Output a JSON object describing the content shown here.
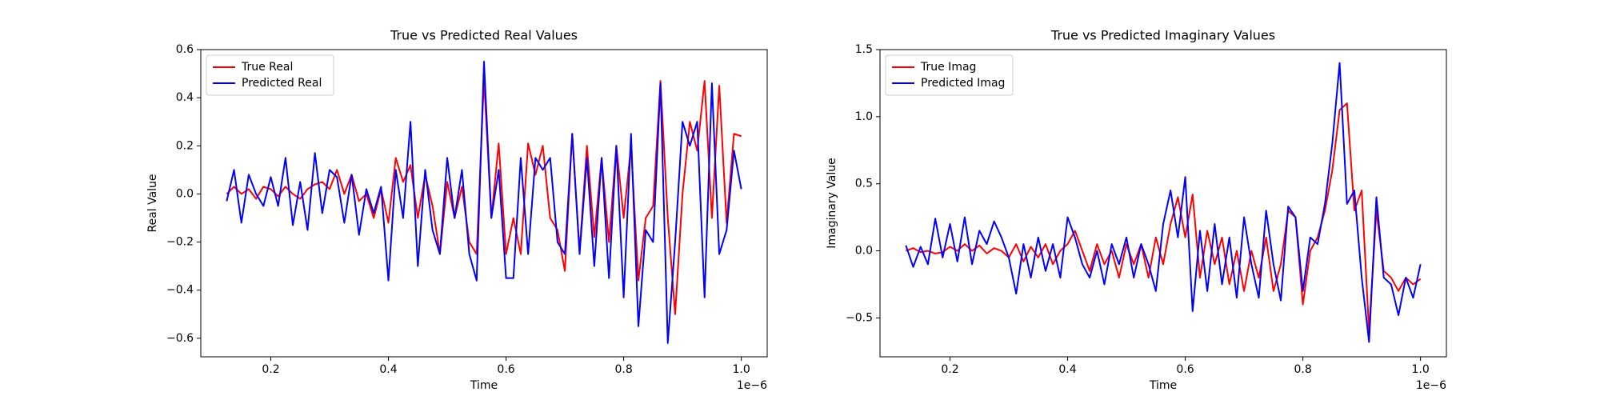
{
  "chart_data": [
    {
      "type": "line",
      "title": "True vs Predicted Real Values",
      "x_label": "Time",
      "y_label": "Real Value",
      "x_offset_label": "1e−6",
      "legend": "upper left",
      "x": [
        0.125,
        0.1375,
        0.15,
        0.1625,
        0.175,
        0.1875,
        0.2,
        0.2125,
        0.225,
        0.2375,
        0.25,
        0.2625,
        0.275,
        0.2875,
        0.3,
        0.3125,
        0.325,
        0.3375,
        0.35,
        0.3625,
        0.375,
        0.3875,
        0.4,
        0.4125,
        0.425,
        0.4375,
        0.45,
        0.4625,
        0.475,
        0.4875,
        0.5,
        0.5125,
        0.525,
        0.5375,
        0.55,
        0.5625,
        0.575,
        0.5875,
        0.6,
        0.6125,
        0.625,
        0.6375,
        0.65,
        0.6625,
        0.675,
        0.6875,
        0.7,
        0.7125,
        0.725,
        0.7375,
        0.75,
        0.7625,
        0.775,
        0.7875,
        0.8,
        0.8125,
        0.825,
        0.8375,
        0.85,
        0.8625,
        0.875,
        0.8875,
        0.9,
        0.9125,
        0.925,
        0.9375,
        0.95,
        0.9625,
        0.975,
        0.9875,
        1.0
      ],
      "series": [
        {
          "name": "True Real",
          "color": "#ff0000",
          "values": [
            0.0,
            0.03,
            0.0,
            0.02,
            -0.02,
            0.03,
            0.02,
            -0.01,
            0.03,
            0.0,
            -0.02,
            0.02,
            0.04,
            0.05,
            0.02,
            0.1,
            0.0,
            0.08,
            -0.03,
            0.0,
            -0.1,
            0.02,
            -0.12,
            0.15,
            0.05,
            0.12,
            -0.1,
            0.08,
            -0.05,
            -0.25,
            0.05,
            -0.1,
            0.03,
            -0.2,
            -0.25,
            0.48,
            -0.1,
            0.21,
            -0.25,
            -0.1,
            -0.25,
            0.21,
            0.08,
            0.2,
            -0.1,
            -0.15,
            -0.32,
            0.25,
            -0.24,
            0.2,
            -0.18,
            0.15,
            -0.2,
            0.2,
            -0.1,
            0.2,
            -0.36,
            -0.1,
            -0.05,
            0.47,
            -0.1,
            -0.5,
            0.0,
            0.3,
            0.18,
            0.47,
            -0.1,
            0.45,
            -0.12,
            0.25,
            0.24
          ]
        },
        {
          "name": "Predicted Real",
          "color": "#0000ff",
          "values": [
            -0.03,
            0.1,
            -0.12,
            0.08,
            0.0,
            -0.05,
            0.07,
            -0.05,
            0.15,
            -0.13,
            0.05,
            -0.15,
            0.17,
            -0.08,
            0.1,
            0.07,
            -0.12,
            0.08,
            -0.17,
            0.02,
            -0.08,
            0.03,
            -0.36,
            0.1,
            -0.1,
            0.3,
            -0.3,
            0.1,
            -0.15,
            -0.25,
            0.15,
            -0.1,
            0.1,
            -0.25,
            -0.36,
            0.55,
            -0.1,
            0.1,
            -0.35,
            -0.35,
            0.15,
            -0.25,
            0.15,
            0.1,
            0.15,
            -0.2,
            -0.25,
            0.25,
            -0.25,
            0.15,
            -0.3,
            0.15,
            -0.35,
            0.2,
            -0.43,
            0.25,
            -0.55,
            -0.15,
            -0.2,
            0.46,
            -0.62,
            -0.2,
            0.3,
            0.2,
            0.3,
            -0.43,
            0.46,
            -0.25,
            -0.15,
            0.18,
            0.02
          ]
        }
      ],
      "xlim": [
        0.081,
        1.044
      ],
      "ylim": [
        -0.677,
        0.6
      ],
      "xticks": [
        0.2,
        0.4,
        0.6,
        0.8,
        {
          "value": 1.0,
          "label": "1.0"
        }
      ],
      "yticks": [
        {
          "value": -0.6,
          "label": "−0.6"
        },
        {
          "value": -0.4,
          "label": "−0.4"
        },
        {
          "value": -0.2,
          "label": "−0.2"
        },
        {
          "value": 0,
          "label": "0.0"
        },
        0.2,
        0.4,
        0.6
      ]
    },
    {
      "type": "line",
      "title": "True vs Predicted Imaginary Values",
      "x_label": "Time",
      "y_label": "Imaginary Value",
      "x_offset_label": "1e−6",
      "legend": "upper left",
      "x": [
        0.125,
        0.1375,
        0.15,
        0.1625,
        0.175,
        0.1875,
        0.2,
        0.2125,
        0.225,
        0.2375,
        0.25,
        0.2625,
        0.275,
        0.2875,
        0.3,
        0.3125,
        0.325,
        0.3375,
        0.35,
        0.3625,
        0.375,
        0.3875,
        0.4,
        0.4125,
        0.425,
        0.4375,
        0.45,
        0.4625,
        0.475,
        0.4875,
        0.5,
        0.5125,
        0.525,
        0.5375,
        0.55,
        0.5625,
        0.575,
        0.5875,
        0.6,
        0.6125,
        0.625,
        0.6375,
        0.65,
        0.6625,
        0.675,
        0.6875,
        0.7,
        0.7125,
        0.725,
        0.7375,
        0.75,
        0.7625,
        0.775,
        0.7875,
        0.8,
        0.8125,
        0.825,
        0.8375,
        0.85,
        0.8625,
        0.875,
        0.8875,
        0.9,
        0.9125,
        0.925,
        0.9375,
        0.95,
        0.9625,
        0.975,
        0.9875,
        1.0
      ],
      "series": [
        {
          "name": "True Imag",
          "color": "#ff0000",
          "values": [
            0.0,
            0.02,
            -0.01,
            0.0,
            -0.02,
            -0.01,
            0.03,
            0.0,
            0.05,
            0.0,
            0.04,
            -0.02,
            0.02,
            0.0,
            -0.05,
            0.05,
            -0.08,
            0.03,
            -0.05,
            0.05,
            -0.1,
            0.0,
            0.05,
            0.15,
            0.0,
            -0.15,
            0.05,
            -0.1,
            0.0,
            -0.2,
            0.05,
            -0.1,
            0.05,
            -0.2,
            0.1,
            -0.1,
            0.2,
            0.4,
            0.1,
            0.42,
            -0.2,
            0.15,
            -0.1,
            0.1,
            -0.25,
            0.0,
            -0.3,
            0.0,
            -0.2,
            0.1,
            -0.3,
            -0.1,
            0.3,
            0.25,
            -0.4,
            0.0,
            0.1,
            0.3,
            0.6,
            1.05,
            1.1,
            0.3,
            0.45,
            -0.6,
            0.3,
            -0.15,
            -0.2,
            -0.3,
            -0.2,
            -0.25,
            -0.21
          ]
        },
        {
          "name": "Predicted Imag",
          "color": "#0000ff",
          "values": [
            0.04,
            -0.12,
            0.03,
            -0.1,
            0.24,
            -0.05,
            0.2,
            -0.08,
            0.25,
            -0.1,
            0.15,
            0.05,
            0.22,
            0.1,
            -0.05,
            -0.32,
            0.05,
            -0.2,
            0.1,
            -0.15,
            0.05,
            -0.2,
            0.25,
            0.1,
            -0.1,
            -0.2,
            0.0,
            -0.25,
            0.05,
            -0.1,
            0.1,
            -0.2,
            0.05,
            -0.1,
            -0.3,
            0.2,
            0.45,
            0.1,
            0.55,
            -0.45,
            0.15,
            -0.3,
            0.2,
            -0.25,
            0.1,
            -0.35,
            0.25,
            -0.1,
            -0.35,
            0.3,
            -0.1,
            -0.37,
            0.33,
            0.25,
            -0.3,
            0.1,
            0.05,
            0.35,
            0.8,
            1.4,
            0.35,
            0.45,
            -0.2,
            -0.68,
            0.4,
            -0.2,
            -0.25,
            -0.48,
            -0.2,
            -0.35,
            -0.1
          ]
        }
      ],
      "xlim": [
        0.081,
        1.044
      ],
      "ylim": [
        -0.79,
        1.5
      ],
      "xticks": [
        0.2,
        0.4,
        0.6,
        0.8,
        {
          "value": 1.0,
          "label": "1.0"
        }
      ],
      "yticks": [
        {
          "value": -0.5,
          "label": "−0.5"
        },
        {
          "value": 0,
          "label": "0.0"
        },
        0.5,
        {
          "value": 1.0,
          "label": "1.0"
        },
        1.5
      ]
    }
  ]
}
